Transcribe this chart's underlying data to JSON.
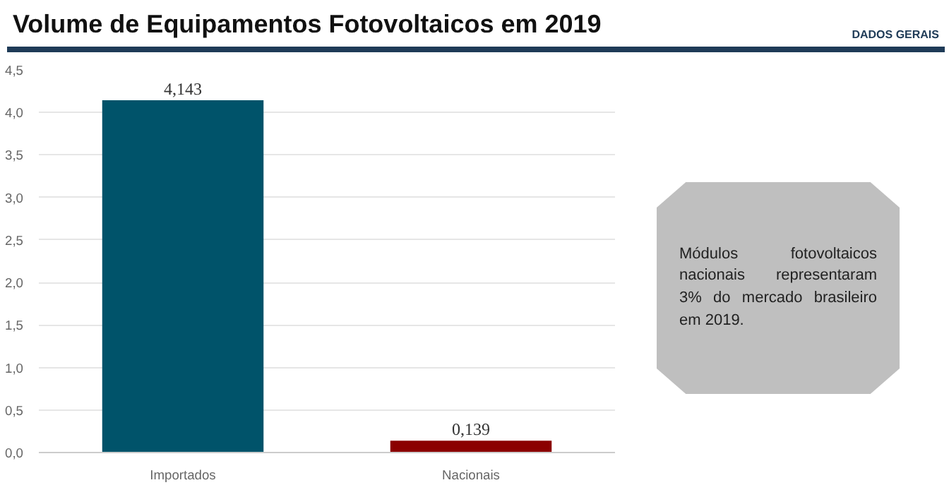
{
  "chart_data": {
    "type": "bar",
    "title": "Volume de Equipamentos Fotovoltaicos em 2019",
    "subtitle": "DADOS GERAIS",
    "categories": [
      "Importados",
      "Nacionais"
    ],
    "values": [
      4.143,
      0.139
    ],
    "colors": [
      "#00536a",
      "#8b0000"
    ],
    "value_labels": [
      "4,143",
      "0,139"
    ],
    "ylim": [
      0,
      4.5
    ],
    "yticks": [
      {
        "value": 0,
        "label": "0,0"
      },
      {
        "value": 0.5,
        "label": "0,5"
      },
      {
        "value": 1,
        "label": "1,0"
      },
      {
        "value": 1.5,
        "label": "1,5"
      },
      {
        "value": 2,
        "label": "2,0"
      },
      {
        "value": 2.5,
        "label": "2,5"
      },
      {
        "value": 3,
        "label": "3,0"
      },
      {
        "value": 3.5,
        "label": "3,5"
      },
      {
        "value": 4,
        "label": "4,0"
      },
      {
        "value": 4.5,
        "label": "4,5"
      }
    ],
    "grid": "y",
    "annotations": [
      "Módulos fotovoltaicos nacionais representaram 3% do mercado brasileiro em 2019."
    ]
  }
}
